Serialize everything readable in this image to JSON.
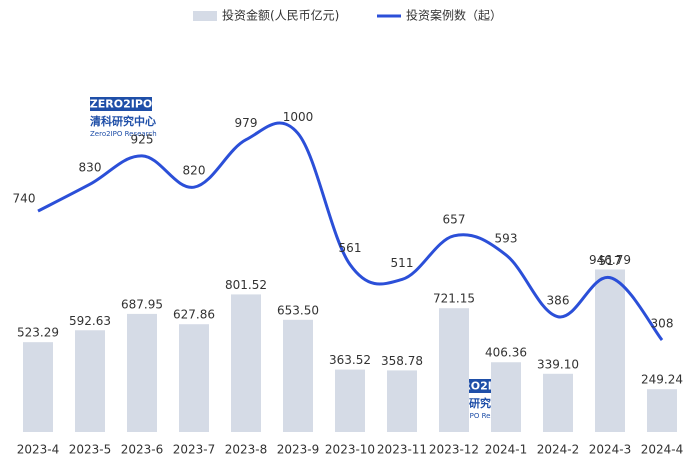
{
  "chart_data": {
    "type": "bar",
    "categories": [
      "2023-4",
      "2023-5",
      "2023-6",
      "2023-7",
      "2023-8",
      "2023-9",
      "2023-10",
      "2023-11",
      "2023-12",
      "2024-1",
      "2024-2",
      "2024-3",
      "2024-4"
    ],
    "series": [
      {
        "name": "投资金额(人民币亿元)",
        "type": "bar",
        "color": "#d5dbe6",
        "values": [
          523.29,
          592.63,
          687.95,
          627.86,
          801.52,
          653.5,
          363.52,
          358.78,
          721.15,
          406.36,
          339.1,
          946.79,
          249.24
        ],
        "value_labels": [
          "523.29",
          "592.63",
          "687.95",
          "627.86",
          "801.52",
          "653.50",
          "363.52",
          "358.78",
          "721.15",
          "406.36",
          "339.10",
          "946.79",
          "249.24"
        ]
      },
      {
        "name": "投资案例数（起）",
        "type": "line",
        "axis": "y2",
        "color": "#2b4fd8",
        "values": [
          740,
          830,
          925,
          820,
          979,
          1000,
          561,
          511,
          657,
          593,
          386,
          517,
          308
        ]
      }
    ],
    "ylim": [
      0,
      2400
    ],
    "y2lim": [
      0,
      1380
    ],
    "legend": "top",
    "watermark": [
      "ZERO2IPO",
      "清科研究中心",
      "Zero2IPO Research"
    ]
  }
}
